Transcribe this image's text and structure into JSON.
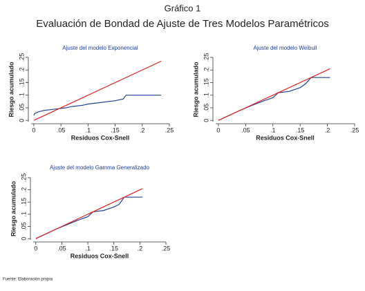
{
  "title": "Gráfico 1",
  "subtitle": "Evaluación de Bondad de Ajuste de Tres Modelos Paramétricos",
  "source": "Fuente: Elaboración propia",
  "chart_data": [
    {
      "type": "line",
      "title": "Ajuste del modelo Exponencial",
      "xlabel": "Residuos Cox-Snell",
      "ylabel": "Riesgo acumulado",
      "xlim": [
        -0.005,
        0.25
      ],
      "ylim": [
        -0.005,
        0.25
      ],
      "xticks": [
        0,
        {
          "value": 0.05,
          "label": ".05"
        },
        {
          "value": 0.1,
          "label": ".1"
        },
        {
          "value": 0.15,
          "label": ".15"
        },
        {
          "value": 0.2,
          "label": ".2"
        },
        {
          "value": 0.25,
          "label": ".25"
        }
      ],
      "yticks": [
        0,
        {
          "value": 0.05,
          "label": ".05"
        },
        {
          "value": 0.1,
          "label": ".1"
        },
        {
          "value": 0.15,
          "label": ".15"
        },
        {
          "value": 0.2,
          "label": ".2"
        },
        {
          "value": 0.25,
          "label": ".25"
        }
      ],
      "series": [
        {
          "color": "#1f3f99",
          "x": [
            0,
            0.002,
            0.01,
            0.02,
            0.04,
            0.06,
            0.07,
            0.09,
            0.1,
            0.12,
            0.15,
            0.165,
            0.17,
            0.235
          ],
          "values": [
            0.02,
            0.028,
            0.035,
            0.04,
            0.045,
            0.05,
            0.055,
            0.06,
            0.065,
            0.07,
            0.078,
            0.085,
            0.1,
            0.1
          ]
        },
        {
          "color": "#e02020",
          "x": [
            0,
            0.235
          ],
          "values": [
            0,
            0.235
          ]
        }
      ]
    },
    {
      "type": "line",
      "title": "Ajuste del modelo Weibull",
      "xlabel": "Residuos Cox-Snell",
      "ylabel": "Riesgo acumulado",
      "xlim": [
        -0.005,
        0.25
      ],
      "ylim": [
        -0.005,
        0.25
      ],
      "xticks": [
        0,
        {
          "value": 0.05,
          "label": ".05"
        },
        {
          "value": 0.1,
          "label": ".1"
        },
        {
          "value": 0.15,
          "label": ".15"
        },
        {
          "value": 0.2,
          "label": ".2"
        },
        {
          "value": 0.25,
          "label": ".25"
        }
      ],
      "yticks": [
        0,
        {
          "value": 0.05,
          "label": ".05"
        },
        {
          "value": 0.1,
          "label": ".1"
        },
        {
          "value": 0.15,
          "label": ".15"
        },
        {
          "value": 0.2,
          "label": ".2"
        },
        {
          "value": 0.25,
          "label": ".25"
        }
      ],
      "series": [
        {
          "color": "#1f3f99",
          "x": [
            0,
            0.01,
            0.02,
            0.04,
            0.06,
            0.08,
            0.1,
            0.11,
            0.13,
            0.15,
            0.16,
            0.17,
            0.205
          ],
          "values": [
            0,
            0.01,
            0.02,
            0.04,
            0.058,
            0.075,
            0.09,
            0.11,
            0.115,
            0.13,
            0.145,
            0.17,
            0.17
          ]
        },
        {
          "color": "#e02020",
          "x": [
            0,
            0.205
          ],
          "values": [
            0,
            0.205
          ]
        }
      ]
    },
    {
      "type": "line",
      "title": "Ajuste del modelo Gamma Generalizado",
      "xlabel": "Residuos Cox-Snell",
      "ylabel": "Riesgo acumulado",
      "xlim": [
        -0.005,
        0.25
      ],
      "ylim": [
        -0.005,
        0.25
      ],
      "xticks": [
        0,
        {
          "value": 0.05,
          "label": ".05"
        },
        {
          "value": 0.1,
          "label": ".1"
        },
        {
          "value": 0.15,
          "label": ".15"
        },
        {
          "value": 0.2,
          "label": ".2"
        },
        {
          "value": 0.25,
          "label": ".25"
        }
      ],
      "yticks": [
        0,
        {
          "value": 0.05,
          "label": ".05"
        },
        {
          "value": 0.1,
          "label": ".1"
        },
        {
          "value": 0.15,
          "label": ".15"
        },
        {
          "value": 0.2,
          "label": ".2"
        },
        {
          "value": 0.25,
          "label": ".25"
        }
      ],
      "series": [
        {
          "color": "#1f3f99",
          "x": [
            0,
            0.01,
            0.02,
            0.04,
            0.06,
            0.08,
            0.1,
            0.11,
            0.13,
            0.15,
            0.16,
            0.17,
            0.205
          ],
          "values": [
            0,
            0.01,
            0.02,
            0.04,
            0.057,
            0.075,
            0.09,
            0.11,
            0.115,
            0.13,
            0.14,
            0.17,
            0.17
          ]
        },
        {
          "color": "#e02020",
          "x": [
            0,
            0.205
          ],
          "values": [
            0,
            0.205
          ]
        }
      ]
    }
  ]
}
